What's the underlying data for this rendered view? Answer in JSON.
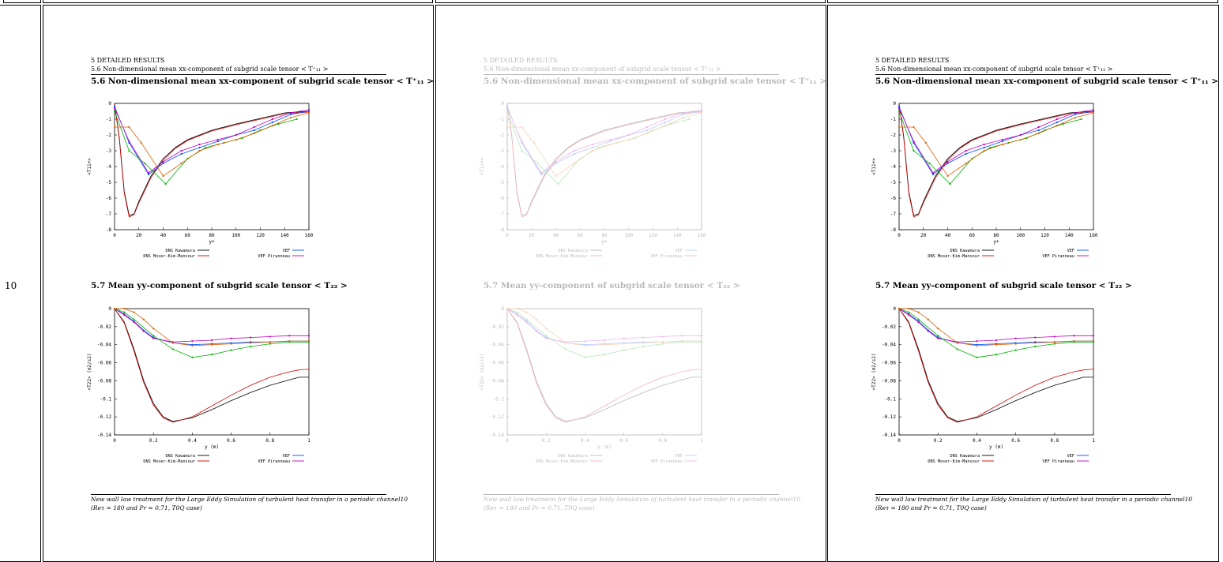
{
  "row_number": "10",
  "pages": [
    {
      "id": "page-1",
      "faded": false
    },
    {
      "id": "page-2",
      "faded": true
    },
    {
      "id": "page-3",
      "faded": false
    }
  ],
  "page": {
    "header_line1": "5   DETAILED RESULTS",
    "header_line2": "5.6   Non-dimensional mean xx-component of subgrid scale tensor < T⁺₁₁ >",
    "section_56": "5.6   Non-dimensional mean xx-component of subgrid scale tensor < T⁺₁₁ >",
    "section_57": "5.7   Mean yy-component of subgrid scale tensor < T₂₂ >",
    "footer_line1": "New wall law treatment for the Large Eddy Simulation of turbulent heat transfer in a periodic channel",
    "footer_page": "10",
    "footer_line2": "(Reτ = 180 and Pr = 0.71, T0Q case)"
  },
  "chart_data": [
    {
      "type": "line",
      "xlabel": "y+",
      "ylabel": "<T11+>",
      "xlim": [
        0,
        160
      ],
      "ylim": [
        -8,
        0
      ],
      "xticks": [
        "0",
        "20",
        "40",
        "60",
        "80",
        "100",
        "120",
        "140",
        "160"
      ],
      "yticks": [
        "0",
        "-1",
        "-2",
        "-3",
        "-4",
        "-5",
        "-6",
        "-7",
        "-8"
      ],
      "legend": [
        {
          "name": "DNS Kawamura",
          "color": "#000000"
        },
        {
          "name": "VEF",
          "color": "#0050ff"
        },
        {
          "name": "DNS Moser-Kim-Mansour",
          "color": "#d00000"
        },
        {
          "name": "VEF Piranneau",
          "color": "#c000c0"
        },
        {
          "name": "VDF",
          "color": "#00b000"
        },
        {
          "name": "VEF Piranneau (shifted mesh)",
          "color": "#e06000"
        }
      ],
      "series": [
        {
          "name": "DNS Kawamura",
          "color": "#000000",
          "x": [
            0,
            4,
            8,
            12,
            16,
            20,
            30,
            40,
            50,
            60,
            80,
            100,
            120,
            140,
            160
          ],
          "y": [
            0,
            -2.2,
            -5.6,
            -7.1,
            -7.0,
            -6.2,
            -4.6,
            -3.5,
            -2.8,
            -2.3,
            -1.7,
            -1.3,
            -0.95,
            -0.6,
            -0.5
          ]
        },
        {
          "name": "DNS Moser-Kim-Mansour",
          "color": "#d00000",
          "x": [
            0,
            4,
            8,
            12,
            16,
            20,
            30,
            40,
            50,
            60,
            80,
            100,
            120,
            140,
            160
          ],
          "y": [
            0,
            -2.3,
            -5.7,
            -7.2,
            -7.05,
            -6.3,
            -4.7,
            -3.6,
            -2.85,
            -2.35,
            -1.75,
            -1.35,
            -1.0,
            -0.65,
            -0.55
          ]
        },
        {
          "name": "VEF",
          "color": "#0050ff",
          "x": [
            0,
            12,
            28,
            40,
            55,
            70,
            85,
            100,
            115,
            130,
            145,
            160
          ],
          "y": [
            -0.2,
            -2.5,
            -4.5,
            -3.8,
            -3.2,
            -2.8,
            -2.4,
            -2.0,
            -1.7,
            -1.2,
            -0.7,
            -0.5
          ]
        },
        {
          "name": "VEF Piranneau",
          "color": "#c000c0",
          "x": [
            0,
            12,
            28,
            40,
            55,
            70,
            85,
            100,
            115,
            130,
            145,
            160
          ],
          "y": [
            -0.3,
            -2.4,
            -4.4,
            -3.7,
            -3.0,
            -2.6,
            -2.3,
            -2.0,
            -1.5,
            -1.0,
            -0.6,
            -0.4
          ]
        },
        {
          "name": "VDF",
          "color": "#00b000",
          "x": [
            0,
            12,
            25,
            42,
            60,
            75,
            90,
            105,
            120,
            135,
            150
          ],
          "y": [
            -0.5,
            -3.0,
            -3.8,
            -5.1,
            -3.5,
            -2.8,
            -2.5,
            -2.2,
            -1.7,
            -1.3,
            -1.0
          ]
        },
        {
          "name": "VEF Piranneau (shifted mesh)",
          "color": "#e06000",
          "x": [
            0,
            12,
            22,
            40,
            55,
            70,
            85,
            100,
            115,
            130,
            145,
            160
          ],
          "y": [
            -1.5,
            -1.5,
            -2.5,
            -4.6,
            -3.8,
            -3.0,
            -2.6,
            -2.3,
            -1.9,
            -1.4,
            -0.9,
            -0.6
          ]
        }
      ]
    },
    {
      "type": "line",
      "xlabel": "y (m)",
      "ylabel": "<T22> (m2/s2)",
      "xlim": [
        0,
        1
      ],
      "ylim": [
        -0.14,
        0
      ],
      "xticks": [
        "0",
        "0.2",
        "0.4",
        "0.6",
        "0.8",
        "1"
      ],
      "yticks": [
        "0",
        "-0.02",
        "-0.04",
        "-0.06",
        "-0.08",
        "-0.1",
        "-0.12",
        "-0.14"
      ],
      "legend": [
        {
          "name": "DNS Kawamura",
          "color": "#000000"
        },
        {
          "name": "VEF",
          "color": "#0050ff"
        },
        {
          "name": "DNS Moser-Kim-Mansour",
          "color": "#d00000"
        },
        {
          "name": "VEF Piranneau",
          "color": "#c000c0"
        },
        {
          "name": "VDF",
          "color": "#00b000"
        },
        {
          "name": "VEF Piranneau (shifted mesh)",
          "color": "#e06000"
        }
      ],
      "series": [
        {
          "name": "DNS Kawamura",
          "color": "#000000",
          "x": [
            0,
            0.05,
            0.1,
            0.15,
            0.2,
            0.25,
            0.3,
            0.4,
            0.5,
            0.6,
            0.7,
            0.8,
            0.9,
            0.95,
            1.0
          ],
          "y": [
            0,
            -0.015,
            -0.045,
            -0.08,
            -0.105,
            -0.12,
            -0.125,
            -0.121,
            -0.112,
            -0.102,
            -0.093,
            -0.085,
            -0.079,
            -0.076,
            -0.076
          ]
        },
        {
          "name": "DNS Moser-Kim-Mansour",
          "color": "#d00000",
          "x": [
            0,
            0.05,
            0.1,
            0.15,
            0.2,
            0.25,
            0.3,
            0.4,
            0.5,
            0.6,
            0.7,
            0.8,
            0.9,
            0.95,
            1.0
          ],
          "y": [
            0,
            -0.016,
            -0.047,
            -0.082,
            -0.107,
            -0.121,
            -0.126,
            -0.12,
            -0.108,
            -0.096,
            -0.085,
            -0.076,
            -0.07,
            -0.068,
            -0.067
          ]
        },
        {
          "name": "VEF",
          "color": "#0050ff",
          "x": [
            0,
            0.05,
            0.1,
            0.15,
            0.2,
            0.3,
            0.4,
            0.5,
            0.6,
            0.7,
            0.8,
            0.9,
            1.0
          ],
          "y": [
            0,
            -0.006,
            -0.014,
            -0.024,
            -0.032,
            -0.038,
            -0.04,
            -0.039,
            -0.038,
            -0.037,
            -0.037,
            -0.036,
            -0.036
          ]
        },
        {
          "name": "VEF Piranneau",
          "color": "#c000c0",
          "x": [
            0,
            0.05,
            0.1,
            0.15,
            0.2,
            0.3,
            0.4,
            0.5,
            0.6,
            0.7,
            0.8,
            0.9,
            1.0
          ],
          "y": [
            0,
            -0.007,
            -0.015,
            -0.025,
            -0.033,
            -0.037,
            -0.036,
            -0.035,
            -0.033,
            -0.032,
            -0.031,
            -0.03,
            -0.03
          ]
        },
        {
          "name": "VDF",
          "color": "#00b000",
          "x": [
            0,
            0.05,
            0.1,
            0.2,
            0.3,
            0.4,
            0.5,
            0.6,
            0.7,
            0.8,
            0.9,
            1.0
          ],
          "y": [
            0,
            -0.004,
            -0.012,
            -0.03,
            -0.045,
            -0.054,
            -0.051,
            -0.046,
            -0.042,
            -0.039,
            -0.037,
            -0.037
          ]
        },
        {
          "name": "VEF Piranneau (shifted mesh)",
          "color": "#e06000",
          "x": [
            0,
            0.05,
            0.1,
            0.15,
            0.2,
            0.3,
            0.4,
            0.5,
            0.6,
            0.7,
            0.8,
            0.9,
            1.0
          ],
          "y": [
            0,
            0,
            -0.004,
            -0.012,
            -0.022,
            -0.038,
            -0.041,
            -0.04,
            -0.039,
            -0.038,
            -0.037,
            -0.036,
            -0.036
          ]
        }
      ]
    }
  ]
}
